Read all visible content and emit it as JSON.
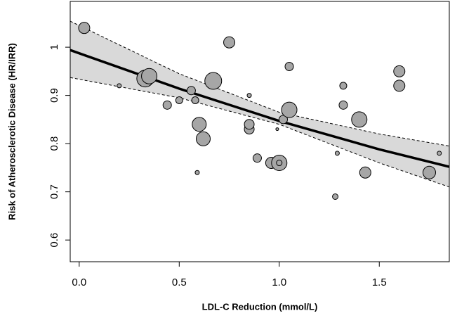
{
  "chart_data": {
    "type": "scatter",
    "x_label": "LDL-C Reduction (mmol/L)",
    "y_label": "Risk of Atherosclerotic Disease (HR/IRR)",
    "xlim": [
      -0.045,
      1.85
    ],
    "ylim": [
      0.555,
      1.095
    ],
    "xticks": [
      {
        "value": 0,
        "label": "0.0"
      },
      0.5,
      {
        "value": 1,
        "label": "1.0"
      },
      1.5
    ],
    "yticks": [
      0.6,
      0.7,
      0.8,
      0.9,
      1
    ],
    "point_color": "#a6a6a6",
    "band_color": "#d9d9d9",
    "line_color": "#000000",
    "x": [
      0.025,
      0.2,
      0.33,
      0.35,
      0.44,
      0.5,
      0.56,
      0.58,
      0.6,
      0.62,
      0.59,
      0.67,
      0.75,
      0.85,
      0.85,
      0.85,
      0.89,
      0.96,
      1.0,
      1.0,
      0.99,
      1.02,
      1.05,
      1.05,
      1.29,
      1.28,
      1.32,
      1.32,
      1.4,
      1.43,
      1.6,
      1.6,
      1.75,
      1.8
    ],
    "y": [
      1.04,
      0.92,
      0.935,
      0.94,
      0.88,
      0.89,
      0.91,
      0.89,
      0.84,
      0.81,
      0.74,
      0.93,
      1.01,
      0.9,
      0.83,
      0.84,
      0.77,
      0.76,
      0.76,
      0.76,
      0.83,
      0.85,
      0.87,
      0.96,
      0.78,
      0.69,
      0.92,
      0.88,
      0.85,
      0.74,
      0.95,
      0.92,
      0.74,
      0.78
    ],
    "size": [
      8,
      3,
      12,
      11,
      6,
      5,
      6,
      5,
      10,
      10,
      3,
      12,
      8,
      3,
      7,
      7,
      6,
      8,
      11,
      4,
      2,
      6,
      11,
      6,
      3,
      4,
      5,
      6,
      11,
      8,
      8,
      8,
      9,
      3
    ],
    "fit": {
      "x": [
        -0.045,
        0.5,
        1.0,
        1.5,
        1.85
      ],
      "y": [
        0.994,
        0.914,
        0.847,
        0.788,
        0.752
      ],
      "upper": [
        1.054,
        0.945,
        0.865,
        0.82,
        0.795
      ],
      "lower": [
        0.937,
        0.895,
        0.84,
        0.76,
        0.71
      ]
    }
  }
}
